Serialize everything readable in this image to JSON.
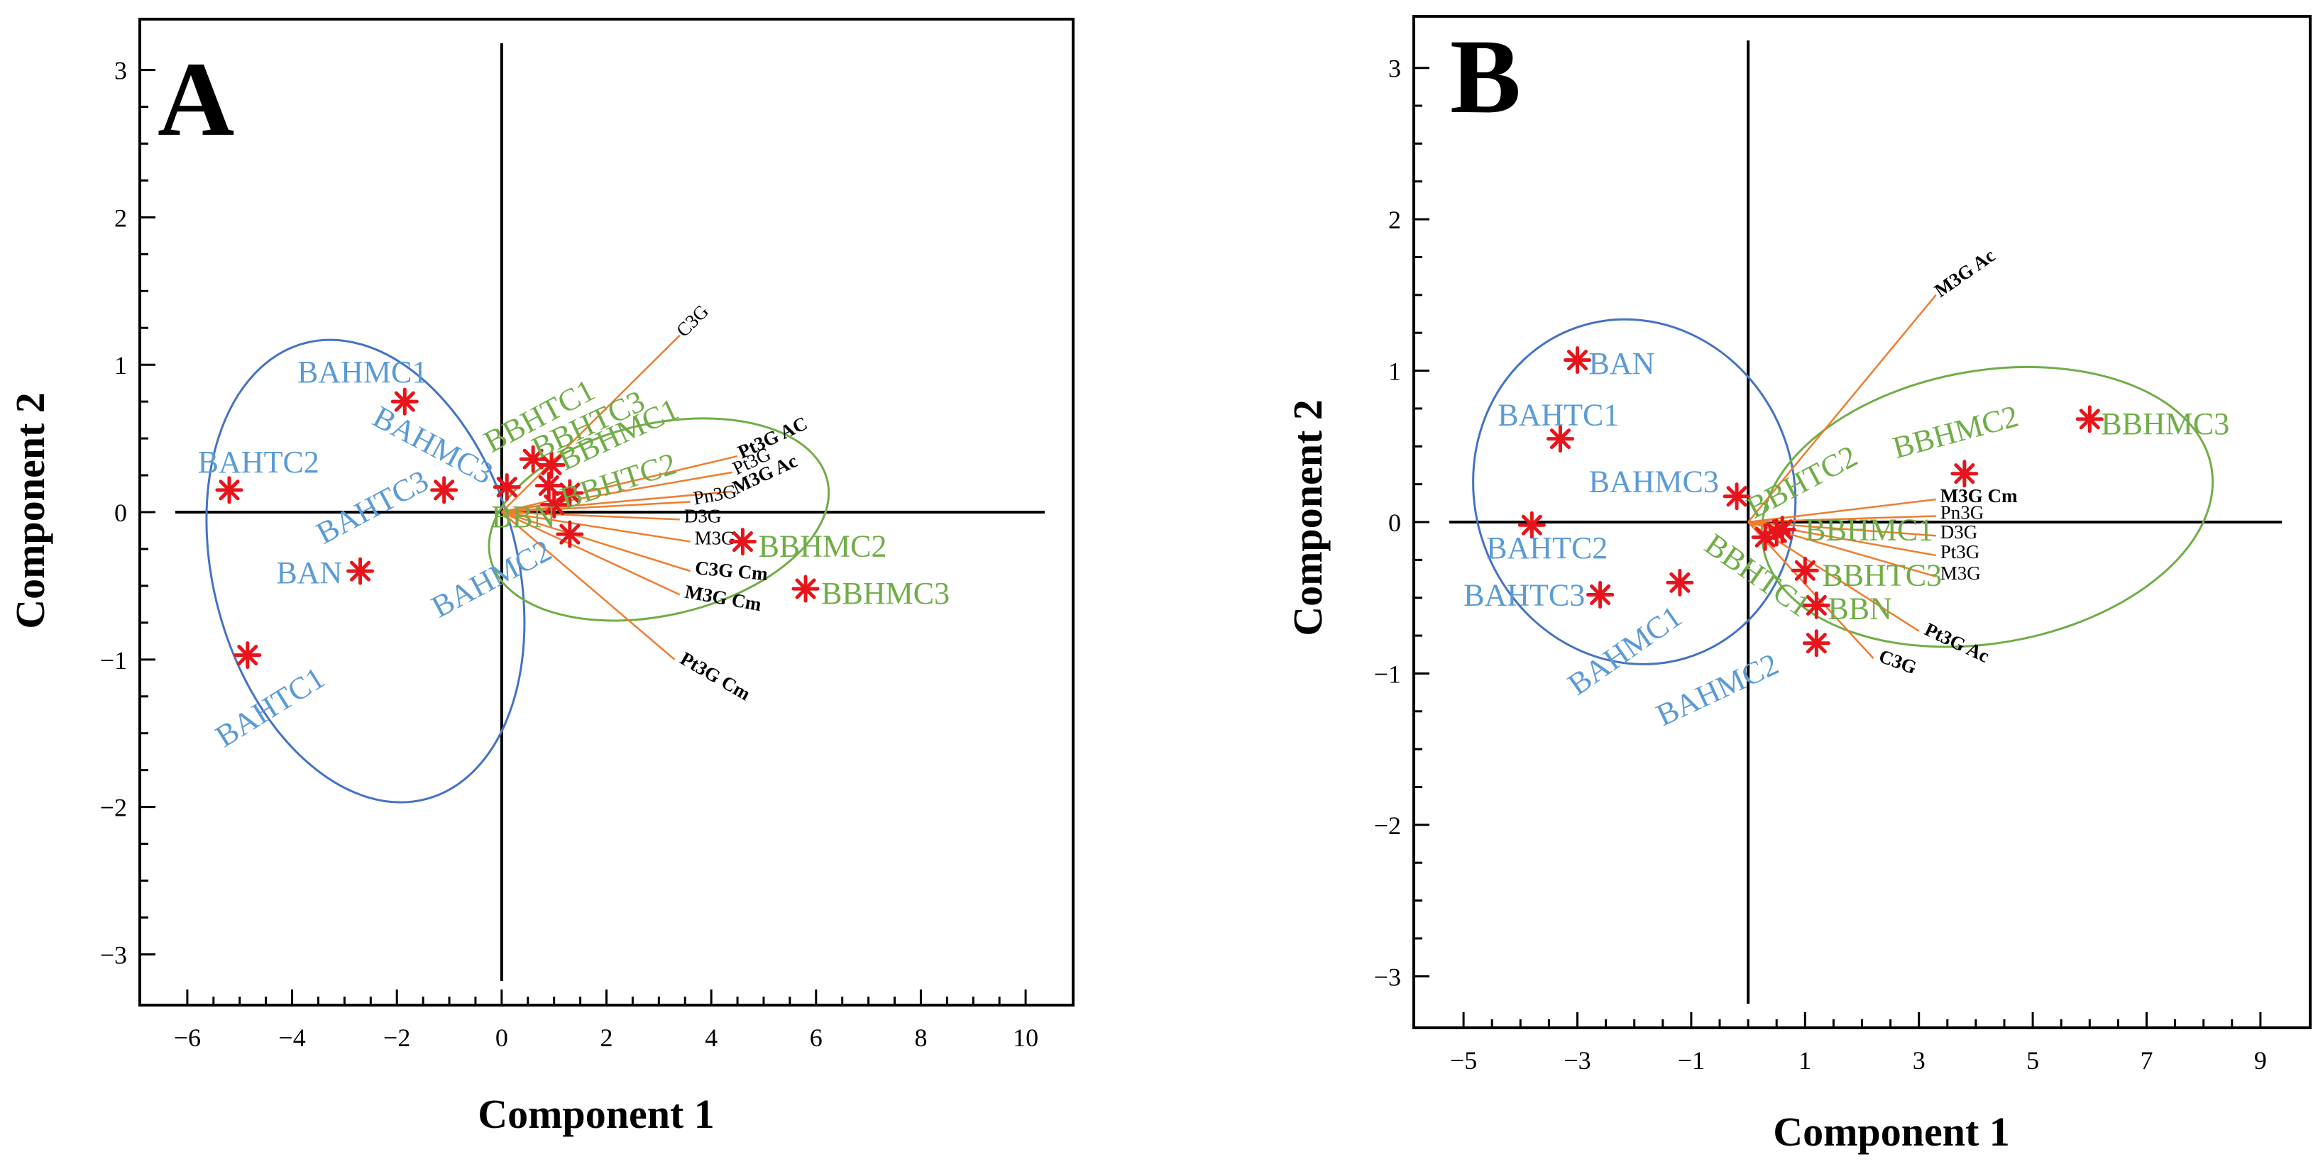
{
  "colors": {
    "untreated": "#5B9BD5",
    "treated": "#70AD47",
    "loading": "#ED7D31",
    "marker": "#E8141B",
    "untreated_ellipse": "#4472C4",
    "treated_ellipse": "#70AD47",
    "axis": "#000000"
  },
  "chart_data": [
    {
      "type": "scatter",
      "subtype": "biplot",
      "panel": "A",
      "xlabel": "Component 1",
      "ylabel": "Component 2",
      "xlim": [
        -6.5,
        10.5
      ],
      "ylim": [
        -3.2,
        3.2
      ],
      "xticks": [
        -6,
        -4,
        -2,
        0,
        2,
        4,
        6,
        8,
        10
      ],
      "xtick_labels": [
        "−6",
        "−4",
        "−2",
        "0",
        "2",
        "4",
        "6",
        "8",
        "10"
      ],
      "yticks": [
        -3,
        -2,
        -1,
        0,
        1,
        2,
        3
      ],
      "ytick_labels": [
        "−3",
        "−2",
        "−1",
        "0",
        "1",
        "2",
        "3"
      ],
      "ellipses": [
        {
          "group": "untreated",
          "cx": -2.6,
          "cy": -0.4,
          "rx": 2.9,
          "ry": 1.6,
          "angle_deg": -15
        },
        {
          "group": "treated",
          "cx": 3.0,
          "cy": -0.05,
          "rx": 3.3,
          "ry": 0.65,
          "angle_deg": -13
        }
      ],
      "observations": [
        {
          "label": "BAHMC1",
          "group": "untreated",
          "x": -1.85,
          "y": 0.75,
          "lx": -3.9,
          "ly": 0.88,
          "rot": 0
        },
        {
          "label": "BAHMC2",
          "group": "untreated",
          "x": 1.3,
          "y": -0.15,
          "lx": -1.2,
          "ly": -0.72,
          "rot": -28
        },
        {
          "label": "BAHMC3",
          "group": "untreated",
          "x": -1.1,
          "y": 0.15,
          "lx": -2.5,
          "ly": 0.6,
          "rot": 28
        },
        {
          "label": "BAN",
          "group": "untreated",
          "x": -2.7,
          "y": -0.4,
          "lx": -4.3,
          "ly": -0.48,
          "rot": 0
        },
        {
          "label": "BAHTC1",
          "group": "untreated",
          "x": -4.85,
          "y": -0.97,
          "lx": -5.3,
          "ly": -1.6,
          "rot": -32
        },
        {
          "label": "BAHTC2",
          "group": "untreated",
          "x": -5.2,
          "y": 0.15,
          "lx": -5.8,
          "ly": 0.27,
          "rot": 0
        },
        {
          "label": "BAHTC3",
          "group": "untreated",
          "x": 0.1,
          "y": 0.17,
          "lx": -3.4,
          "ly": -0.22,
          "rot": -28
        },
        {
          "label": "BBHTC1",
          "group": "treated",
          "x": 0.6,
          "y": 0.36,
          "lx": -0.2,
          "ly": 0.4,
          "rot": -28
        },
        {
          "label": "BBHTC2",
          "group": "treated",
          "x": 1.0,
          "y": 0.05,
          "lx": 1.2,
          "ly": 0.02,
          "rot": -18
        },
        {
          "label": "BBHTC3",
          "group": "treated",
          "x": 0.95,
          "y": 0.32,
          "lx": 0.7,
          "ly": 0.36,
          "rot": -25
        },
        {
          "label": "BBHMC1",
          "group": "treated",
          "x": 1.3,
          "y": 0.13,
          "lx": 1.2,
          "ly": 0.28,
          "rot": -25
        },
        {
          "label": "BBHMC2",
          "group": "treated",
          "x": 4.6,
          "y": -0.2,
          "lx": 4.9,
          "ly": -0.3,
          "rot": 0
        },
        {
          "label": "BBHMC3",
          "group": "treated",
          "x": 5.8,
          "y": -0.52,
          "lx": 6.1,
          "ly": -0.62,
          "rot": 0
        },
        {
          "label": "BBN",
          "group": "treated",
          "x": 0.9,
          "y": 0.18,
          "lx": -0.2,
          "ly": -0.1,
          "rot": 0
        }
      ],
      "loadings": [
        {
          "label": "C3G",
          "x": 3.4,
          "y": 1.2,
          "bold": false,
          "rot": -45
        },
        {
          "label": "Pt3G AC",
          "x": 4.5,
          "y": 0.38,
          "bold": true,
          "rot": -25
        },
        {
          "label": "Pt3G",
          "x": 4.4,
          "y": 0.27,
          "bold": false,
          "rot": -25
        },
        {
          "label": "M3G Ac",
          "x": 4.4,
          "y": 0.14,
          "bold": true,
          "rot": -25
        },
        {
          "label": "Pn3G",
          "x": 3.6,
          "y": 0.07,
          "bold": false,
          "rot": -10
        },
        {
          "label": "D3G",
          "x": 3.4,
          "y": -0.05,
          "bold": false,
          "rot": 0
        },
        {
          "label": "M3G",
          "x": 3.6,
          "y": -0.2,
          "bold": false,
          "rot": 0
        },
        {
          "label": "C3G Cm",
          "x": 3.6,
          "y": -0.4,
          "bold": true,
          "rot": 5
        },
        {
          "label": "M3G Cm",
          "x": 3.4,
          "y": -0.56,
          "bold": true,
          "rot": 10
        },
        {
          "label": "Pt3G Cm",
          "x": 3.3,
          "y": -1.0,
          "bold": true,
          "rot": 30
        }
      ]
    },
    {
      "type": "scatter",
      "subtype": "biplot",
      "panel": "B",
      "xlabel": "Component 1",
      "ylabel": "Component 2",
      "xlim": [
        -5.5,
        9.5
      ],
      "ylim": [
        -3.2,
        3.2
      ],
      "xticks": [
        -5,
        -3,
        -1,
        1,
        3,
        5,
        7,
        9
      ],
      "xtick_labels": [
        "−5",
        "−3",
        "−1",
        "1",
        "3",
        "5",
        "7",
        "9"
      ],
      "yticks": [
        -3,
        -2,
        -1,
        0,
        1,
        2,
        3
      ],
      "ytick_labels": [
        "−3",
        "−2",
        "−1",
        "0",
        "1",
        "2",
        "3"
      ],
      "ellipses": [
        {
          "group": "untreated",
          "cx": -2.0,
          "cy": 0.2,
          "rx": 2.8,
          "ry": 1.15,
          "angle_deg": -20
        },
        {
          "group": "treated",
          "cx": 4.2,
          "cy": 0.1,
          "rx": 4.0,
          "ry": 0.9,
          "angle_deg": -10
        }
      ],
      "observations": [
        {
          "label": "BAN",
          "group": "untreated",
          "x": -3.0,
          "y": 1.07,
          "lx": -2.8,
          "ly": 0.98,
          "rot": 0
        },
        {
          "label": "BAHTC1",
          "group": "untreated",
          "x": -3.3,
          "y": 0.55,
          "lx": -4.4,
          "ly": 0.64,
          "rot": 0
        },
        {
          "label": "BAHTC2",
          "group": "untreated",
          "x": -3.8,
          "y": -0.02,
          "lx": -4.6,
          "ly": -0.24,
          "rot": 0
        },
        {
          "label": "BAHTC3",
          "group": "untreated",
          "x": -2.6,
          "y": -0.48,
          "lx": -5.0,
          "ly": -0.55,
          "rot": 0
        },
        {
          "label": "BAHMC1",
          "group": "untreated",
          "x": -1.2,
          "y": -0.4,
          "lx": -3.0,
          "ly": -1.15,
          "rot": -35
        },
        {
          "label": "BAHMC2",
          "group": "untreated",
          "x": 1.2,
          "y": -0.8,
          "lx": -1.5,
          "ly": -1.35,
          "rot": -25
        },
        {
          "label": "BAHMC3",
          "group": "untreated",
          "x": -0.2,
          "y": 0.17,
          "lx": -2.8,
          "ly": 0.2,
          "rot": 0
        },
        {
          "label": "BBN",
          "group": "treated",
          "x": 1.2,
          "y": -0.55,
          "lx": 1.4,
          "ly": -0.64,
          "rot": 0
        },
        {
          "label": "BBHTC1",
          "group": "treated",
          "x": 0.3,
          "y": -0.1,
          "lx": -0.8,
          "ly": -0.18,
          "rot": 35
        },
        {
          "label": "BBHTC2",
          "group": "treated",
          "x": 0.5,
          "y": -0.07,
          "lx": 0.1,
          "ly": 0.02,
          "rot": -28
        },
        {
          "label": "BBHTC3",
          "group": "treated",
          "x": 1.0,
          "y": -0.32,
          "lx": 1.3,
          "ly": -0.42,
          "rot": 0
        },
        {
          "label": "BBHMC1",
          "group": "treated",
          "x": 0.6,
          "y": -0.05,
          "lx": 1.0,
          "ly": -0.12,
          "rot": 0
        },
        {
          "label": "BBHMC2",
          "group": "treated",
          "x": 3.8,
          "y": 0.32,
          "lx": 2.6,
          "ly": 0.42,
          "rot": -15
        },
        {
          "label": "BBHMC3",
          "group": "treated",
          "x": 6.0,
          "y": 0.68,
          "lx": 6.2,
          "ly": 0.58,
          "rot": 0
        }
      ],
      "loadings": [
        {
          "label": "M3G Ac",
          "x": 3.3,
          "y": 1.5,
          "bold": true,
          "rot": -35
        },
        {
          "label": "M3G Cm",
          "x": 3.3,
          "y": 0.15,
          "bold": true,
          "rot": 0
        },
        {
          "label": "Pn3G",
          "x": 3.3,
          "y": 0.04,
          "bold": false,
          "rot": 0
        },
        {
          "label": "D3G",
          "x": 3.3,
          "y": -0.09,
          "bold": false,
          "rot": 0
        },
        {
          "label": "Pt3G",
          "x": 3.3,
          "y": -0.22,
          "bold": false,
          "rot": 0
        },
        {
          "label": "M3G",
          "x": 3.3,
          "y": -0.36,
          "bold": false,
          "rot": 0
        },
        {
          "label": "Pt3G Ac",
          "x": 3.0,
          "y": -0.72,
          "bold": true,
          "rot": 25
        },
        {
          "label": "C3G",
          "x": 2.2,
          "y": -0.9,
          "bold": true,
          "rot": 20
        }
      ]
    }
  ]
}
